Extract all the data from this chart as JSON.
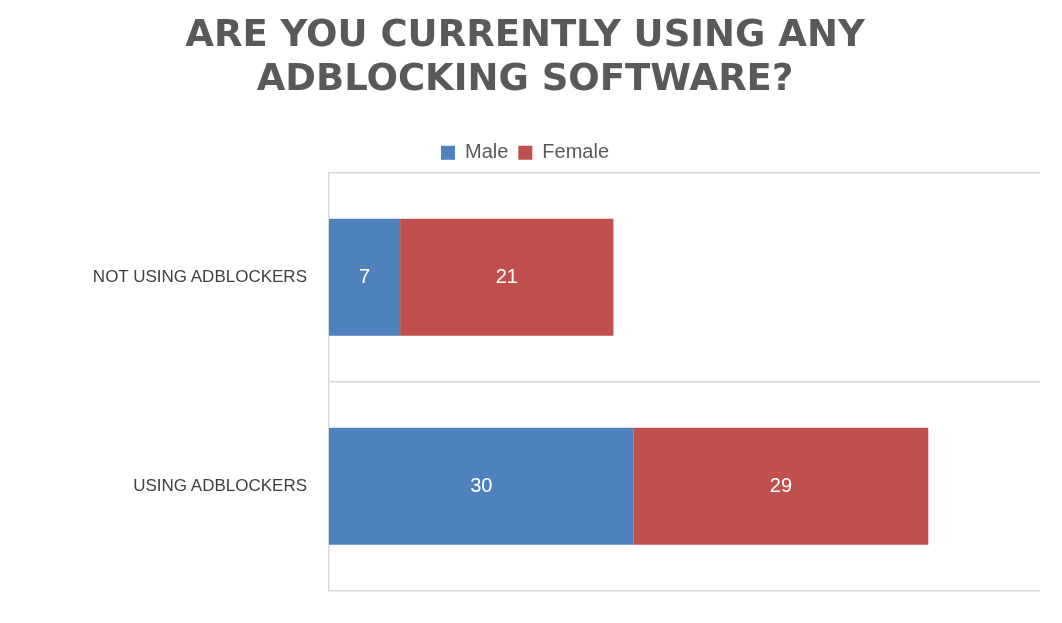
{
  "chart_data": {
    "type": "bar",
    "orientation": "horizontal",
    "stacked": true,
    "title": [
      "ARE YOU CURRENTLY USING ANY",
      "ADBLOCKING SOFTWARE?"
    ],
    "categories": [
      "NOT USING ADBLOCKERS",
      "USING ADBLOCKERS"
    ],
    "series": [
      {
        "name": "Male",
        "color": "#4f81bd",
        "values": [
          7,
          30
        ]
      },
      {
        "name": "Female",
        "color": "#c0504d",
        "values": [
          21,
          29
        ]
      }
    ],
    "xlim": [
      0,
      70
    ],
    "tick_labels": "y",
    "grid": "y",
    "legend": "top",
    "data_labels": true
  }
}
